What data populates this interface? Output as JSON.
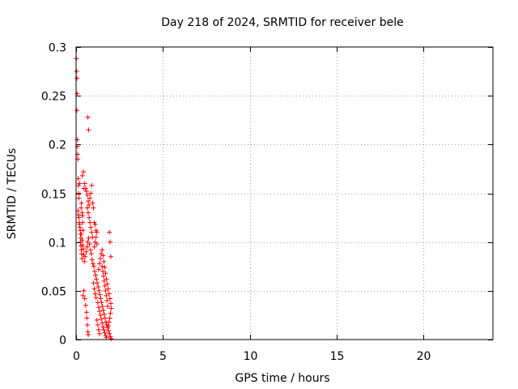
{
  "chart_data": {
    "type": "scatter",
    "title": "Day 218 of 2024, SRMTID for receiver bele",
    "xlabel": "GPS time / hours",
    "ylabel": "SRMTID / TECUs",
    "xlim": [
      0,
      24
    ],
    "ylim": [
      0,
      0.3
    ],
    "xticks": [
      0,
      5,
      10,
      15,
      20
    ],
    "xtick_labels": [
      "0",
      "5",
      "10",
      "15",
      "20"
    ],
    "yticks": [
      0,
      0.05,
      0.1,
      0.15,
      0.2,
      0.25,
      0.3
    ],
    "ytick_labels": [
      "0",
      "0.05",
      "0.1",
      "0.15",
      "0.2",
      "0.25",
      "0.3"
    ],
    "grid": true,
    "marker": "+",
    "color": "#ff0000",
    "series": [
      {
        "name": "SRMTID",
        "points": [
          [
            0.02,
            0.288
          ],
          [
            0.03,
            0.275
          ],
          [
            0.05,
            0.268
          ],
          [
            0.06,
            0.252
          ],
          [
            0.04,
            0.235
          ],
          [
            0.07,
            0.205
          ],
          [
            0.08,
            0.198
          ],
          [
            0.09,
            0.19
          ],
          [
            0.1,
            0.185
          ],
          [
            0.12,
            0.165
          ],
          [
            0.14,
            0.158
          ],
          [
            0.15,
            0.15
          ],
          [
            0.16,
            0.145
          ],
          [
            0.11,
            0.132
          ],
          [
            0.13,
            0.128
          ],
          [
            0.17,
            0.125
          ],
          [
            0.18,
            0.12
          ],
          [
            0.2,
            0.118
          ],
          [
            0.22,
            0.115
          ],
          [
            0.24,
            0.112
          ],
          [
            0.25,
            0.108
          ],
          [
            0.27,
            0.104
          ],
          [
            0.26,
            0.1
          ],
          [
            0.28,
            0.096
          ],
          [
            0.3,
            0.092
          ],
          [
            0.32,
            0.088
          ],
          [
            0.34,
            0.083
          ],
          [
            0.29,
            0.135
          ],
          [
            0.31,
            0.14
          ],
          [
            0.35,
            0.13
          ],
          [
            0.37,
            0.127
          ],
          [
            0.38,
            0.12
          ],
          [
            0.4,
            0.112
          ],
          [
            0.36,
            0.168
          ],
          [
            0.42,
            0.172
          ],
          [
            0.2,
            0.16
          ],
          [
            0.45,
            0.155
          ],
          [
            0.5,
            0.16
          ],
          [
            0.55,
            0.155
          ],
          [
            0.6,
            0.152
          ],
          [
            0.65,
            0.148
          ],
          [
            0.7,
            0.142
          ],
          [
            0.75,
            0.138
          ],
          [
            0.8,
            0.145
          ],
          [
            0.85,
            0.15
          ],
          [
            0.9,
            0.158
          ],
          [
            0.95,
            0.14
          ],
          [
            1.0,
            0.135
          ],
          [
            1.05,
            0.12
          ],
          [
            1.1,
            0.118
          ],
          [
            1.15,
            0.112
          ],
          [
            1.2,
            0.11
          ],
          [
            0.68,
            0.228
          ],
          [
            0.72,
            0.215
          ],
          [
            0.4,
            0.045
          ],
          [
            0.45,
            0.05
          ],
          [
            0.5,
            0.042
          ],
          [
            0.55,
            0.035
          ],
          [
            0.6,
            0.028
          ],
          [
            0.62,
            0.022
          ],
          [
            0.65,
            0.015
          ],
          [
            0.68,
            0.008
          ],
          [
            0.7,
            0.005
          ],
          [
            0.48,
            0.08
          ],
          [
            0.52,
            0.085
          ],
          [
            0.58,
            0.09
          ],
          [
            0.63,
            0.095
          ],
          [
            0.67,
            0.1
          ],
          [
            0.72,
            0.104
          ],
          [
            0.78,
            0.098
          ],
          [
            0.83,
            0.092
          ],
          [
            0.88,
            0.088
          ],
          [
            0.92,
            0.082
          ],
          [
            0.97,
            0.078
          ],
          [
            1.02,
            0.075
          ],
          [
            1.07,
            0.07
          ],
          [
            1.12,
            0.066
          ],
          [
            1.17,
            0.062
          ],
          [
            1.22,
            0.058
          ],
          [
            1.27,
            0.054
          ],
          [
            1.32,
            0.05
          ],
          [
            1.37,
            0.046
          ],
          [
            1.42,
            0.042
          ],
          [
            1.47,
            0.038
          ],
          [
            1.52,
            0.034
          ],
          [
            1.57,
            0.03
          ],
          [
            1.62,
            0.026
          ],
          [
            1.67,
            0.022
          ],
          [
            1.72,
            0.018
          ],
          [
            1.77,
            0.015
          ],
          [
            1.82,
            0.012
          ],
          [
            1.87,
            0.009
          ],
          [
            1.92,
            0.006
          ],
          [
            1.97,
            0.003
          ],
          [
            2.02,
            0.001
          ],
          [
            1.05,
            0.095
          ],
          [
            1.1,
            0.1
          ],
          [
            1.15,
            0.105
          ],
          [
            1.2,
            0.098
          ],
          [
            1.0,
            0.058
          ],
          [
            1.05,
            0.052
          ],
          [
            1.1,
            0.047
          ],
          [
            1.15,
            0.043
          ],
          [
            1.25,
            0.038
          ],
          [
            1.3,
            0.033
          ],
          [
            1.35,
            0.029
          ],
          [
            1.4,
            0.025
          ],
          [
            1.45,
            0.021
          ],
          [
            1.5,
            0.017
          ],
          [
            1.55,
            0.013
          ],
          [
            1.6,
            0.01
          ],
          [
            1.65,
            0.007
          ],
          [
            1.7,
            0.004
          ],
          [
            1.75,
            0.002
          ],
          [
            1.3,
            0.072
          ],
          [
            1.35,
            0.078
          ],
          [
            1.4,
            0.083
          ],
          [
            1.45,
            0.088
          ],
          [
            1.5,
            0.092
          ],
          [
            1.55,
            0.086
          ],
          [
            1.6,
            0.08
          ],
          [
            1.65,
            0.074
          ],
          [
            1.7,
            0.068
          ],
          [
            1.75,
            0.062
          ],
          [
            1.8,
            0.057
          ],
          [
            1.85,
            0.052
          ],
          [
            1.9,
            0.047
          ],
          [
            1.95,
            0.042
          ],
          [
            2.0,
            0.037
          ],
          [
            2.02,
            0.032
          ],
          [
            1.98,
            0.027
          ],
          [
            1.94,
            0.022
          ],
          [
            1.9,
            0.018
          ],
          [
            1.86,
            0.014
          ],
          [
            1.82,
            0.034
          ],
          [
            1.78,
            0.04
          ],
          [
            1.74,
            0.045
          ],
          [
            1.7,
            0.05
          ],
          [
            1.66,
            0.055
          ],
          [
            1.62,
            0.06
          ],
          [
            1.58,
            0.065
          ],
          [
            1.54,
            0.07
          ],
          [
            1.5,
            0.075
          ],
          [
            1.92,
            0.11
          ],
          [
            1.96,
            0.1
          ],
          [
            2.0,
            0.085
          ],
          [
            0.9,
            0.11
          ],
          [
            0.95,
            0.105
          ],
          [
            0.85,
            0.115
          ],
          [
            0.8,
            0.12
          ],
          [
            0.75,
            0.125
          ],
          [
            0.7,
            0.13
          ],
          [
            0.65,
            0.135
          ],
          [
            0.3,
            0.108
          ],
          [
            0.35,
            0.102
          ],
          [
            0.38,
            0.097
          ],
          [
            0.42,
            0.093
          ],
          [
            0.44,
            0.087
          ],
          [
            1.25,
            0.015
          ],
          [
            1.3,
            0.01
          ],
          [
            1.35,
            0.006
          ],
          [
            1.2,
            0.02
          ]
        ]
      }
    ]
  }
}
